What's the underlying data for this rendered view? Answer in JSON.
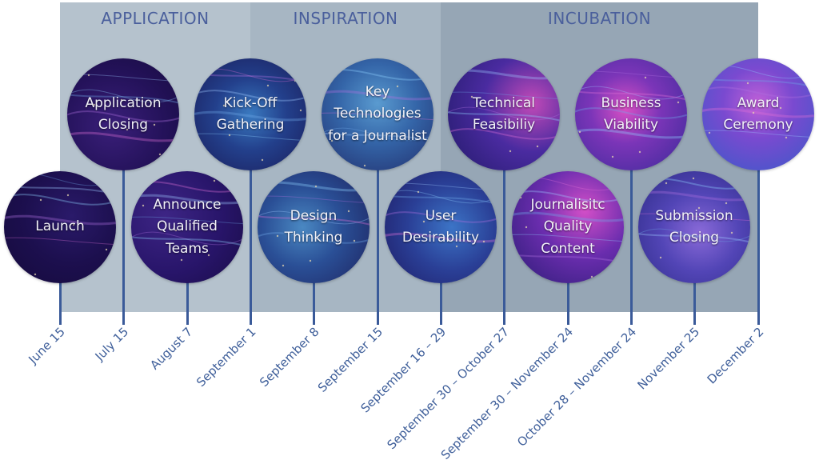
{
  "phases": [
    {
      "title": "APPLICATION"
    },
    {
      "title": "INSPIRATION"
    },
    {
      "title": "INCUBATION"
    }
  ],
  "milestones": [
    {
      "label": "Launch",
      "date": "June 15"
    },
    {
      "label": "Application Closing",
      "date": "July 15"
    },
    {
      "label": "Announce Qualified Teams",
      "date": "August 7"
    },
    {
      "label": "Kick-Off Gathering",
      "date": "September 1"
    },
    {
      "label": "Design Thinking",
      "date": "September 8"
    },
    {
      "label": "Key Technologies for a Journalist",
      "date": "September 15"
    },
    {
      "label": "User Desirability",
      "date": "September 16 – 29"
    },
    {
      "label": "Technical Feasibiliy",
      "date": "September 30 – October 27"
    },
    {
      "label": "Journalisitc Quality Content",
      "date": "September 30 – November 24"
    },
    {
      "label": "Business Viability",
      "date": "October 28 – November 24"
    },
    {
      "label": "Submission Closing",
      "date": "November 25"
    },
    {
      "label": "Award Ceremony",
      "date": "December 2"
    }
  ],
  "colors": {
    "phase_application": "#b5c2cd",
    "phase_inspiration": "#a7b6c3",
    "phase_incubation": "#96a6b5",
    "stem": "#3a5a99",
    "text": "#4a5f9c"
  }
}
